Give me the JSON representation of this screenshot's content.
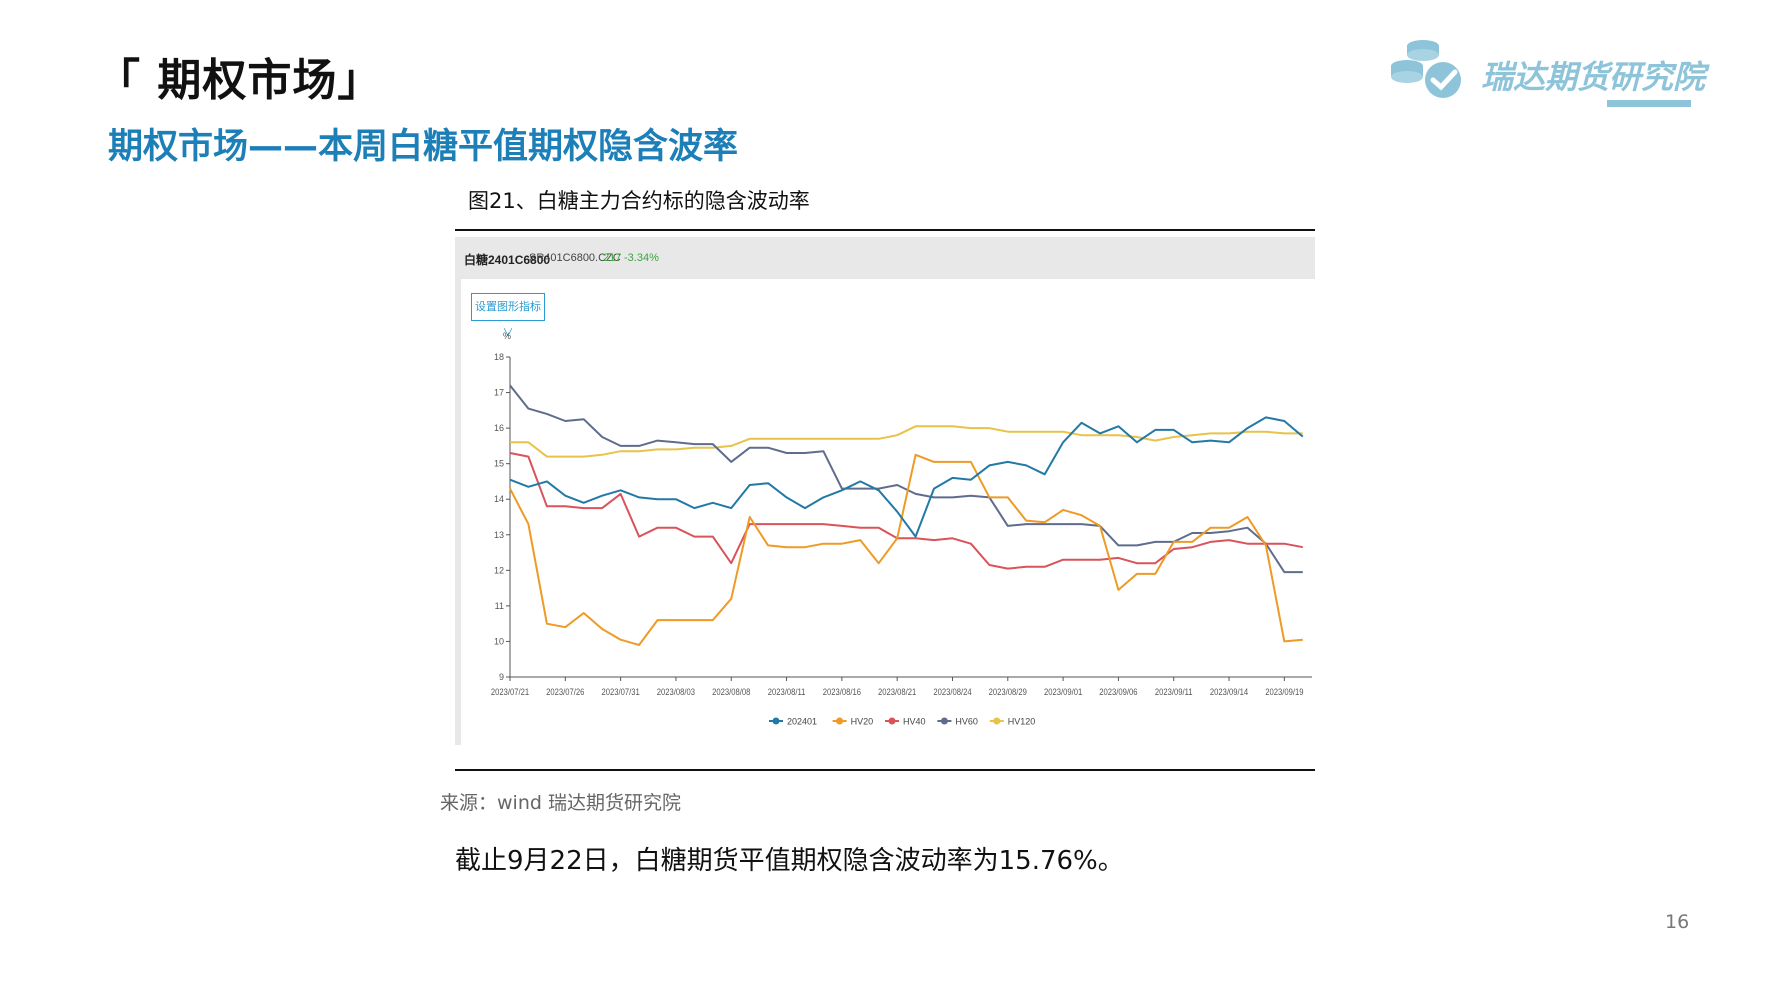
{
  "slide": {
    "section_title": "「 期权市场」",
    "subtitle": "期权市场——本周白糖平值期权隐含波率",
    "figure_caption": "图21、白糖主力合约标的隐含波动率",
    "source": "来源：wind   瑞达期货研究院",
    "summary": "截止9月22日，白糖期货平值期权隐含波动率为15.76%。",
    "page_number": "16",
    "logo_text": "瑞达期货研究院"
  },
  "chart_header": {
    "name": "白糖2401C6800",
    "code": "SR401C6800.CZC",
    "price": "217",
    "change": "-3.34%"
  },
  "controls": {
    "indicator_button": "设置图形指标 ∨"
  },
  "colors": {
    "accent": "#1d7fb8",
    "logo": "#8ec4d9",
    "s202401": "#2379a6",
    "sHV20": "#ee9a24",
    "sHV40": "#d9535a",
    "sHV60": "#5f6c8d",
    "sHV120": "#e8c24a"
  },
  "chart_data": {
    "type": "line",
    "ylabel": "%",
    "ylim": [
      9,
      18
    ],
    "yticks": [
      9,
      10,
      11,
      12,
      13,
      14,
      15,
      16,
      17,
      18
    ],
    "xlim": [
      0,
      43.5
    ],
    "xticks": [
      {
        "i": 0,
        "label": "2023/07/21"
      },
      {
        "i": 3,
        "label": "2023/07/26"
      },
      {
        "i": 6,
        "label": "2023/07/31"
      },
      {
        "i": 9,
        "label": "2023/08/03"
      },
      {
        "i": 12,
        "label": "2023/08/08"
      },
      {
        "i": 15,
        "label": "2023/08/11"
      },
      {
        "i": 18,
        "label": "2023/08/16"
      },
      {
        "i": 21,
        "label": "2023/08/21"
      },
      {
        "i": 24,
        "label": "2023/08/24"
      },
      {
        "i": 27,
        "label": "2023/08/29"
      },
      {
        "i": 30,
        "label": "2023/09/01"
      },
      {
        "i": 33,
        "label": "2023/09/06"
      },
      {
        "i": 36,
        "label": "2023/09/11"
      },
      {
        "i": 39,
        "label": "2023/09/14"
      },
      {
        "i": 42,
        "label": "2023/09/19"
      }
    ],
    "legend_position": "bottom",
    "series": [
      {
        "name": "202401",
        "color": "#2379a6",
        "values": [
          14.55,
          14.35,
          14.5,
          14.1,
          13.9,
          14.1,
          14.25,
          14.05,
          14.0,
          14.0,
          13.75,
          13.9,
          13.75,
          14.4,
          14.45,
          14.05,
          13.75,
          14.05,
          14.25,
          14.5,
          14.25,
          13.65,
          12.95,
          14.3,
          14.6,
          14.55,
          14.95,
          15.05,
          14.95,
          14.7,
          15.6,
          16.15,
          15.85,
          16.05,
          15.6,
          15.95,
          15.95,
          15.6,
          15.65,
          15.6,
          16.0,
          16.3,
          16.2,
          15.76
        ]
      },
      {
        "name": "HV20",
        "color": "#ee9a24",
        "values": [
          14.3,
          13.3,
          10.5,
          10.4,
          10.8,
          10.35,
          10.05,
          9.9,
          10.6,
          10.6,
          10.6,
          10.6,
          11.2,
          13.5,
          12.7,
          12.65,
          12.65,
          12.75,
          12.75,
          12.85,
          12.2,
          12.9,
          15.25,
          15.05,
          15.05,
          15.05,
          14.05,
          14.05,
          13.4,
          13.35,
          13.7,
          13.55,
          13.25,
          11.45,
          11.9,
          11.9,
          12.8,
          12.8,
          13.2,
          13.2,
          13.5,
          12.7,
          10.0,
          10.05
        ]
      },
      {
        "name": "HV40",
        "color": "#d9535a",
        "values": [
          15.3,
          15.2,
          13.8,
          13.8,
          13.75,
          13.75,
          14.15,
          12.95,
          13.2,
          13.2,
          12.95,
          12.95,
          12.2,
          13.3,
          13.3,
          13.3,
          13.3,
          13.3,
          13.25,
          13.2,
          13.2,
          12.9,
          12.9,
          12.85,
          12.9,
          12.75,
          12.15,
          12.05,
          12.1,
          12.1,
          12.3,
          12.3,
          12.3,
          12.35,
          12.2,
          12.2,
          12.6,
          12.65,
          12.8,
          12.85,
          12.75,
          12.75,
          12.75,
          12.65
        ]
      },
      {
        "name": "HV60",
        "color": "#5f6c8d",
        "values": [
          17.2,
          16.55,
          16.4,
          16.2,
          16.25,
          15.75,
          15.5,
          15.5,
          15.65,
          15.6,
          15.55,
          15.55,
          15.05,
          15.45,
          15.45,
          15.3,
          15.3,
          15.35,
          14.3,
          14.3,
          14.3,
          14.4,
          14.15,
          14.05,
          14.05,
          14.1,
          14.05,
          13.25,
          13.3,
          13.3,
          13.3,
          13.3,
          13.25,
          12.7,
          12.7,
          12.8,
          12.8,
          13.05,
          13.05,
          13.1,
          13.2,
          12.75,
          11.95,
          11.95
        ]
      },
      {
        "name": "HV120",
        "color": "#e8c24a",
        "values": [
          15.6,
          15.6,
          15.2,
          15.2,
          15.2,
          15.25,
          15.35,
          15.35,
          15.4,
          15.4,
          15.45,
          15.45,
          15.5,
          15.7,
          15.7,
          15.7,
          15.7,
          15.7,
          15.7,
          15.7,
          15.7,
          15.8,
          16.05,
          16.05,
          16.05,
          16.0,
          16.0,
          15.9,
          15.9,
          15.9,
          15.9,
          15.8,
          15.8,
          15.8,
          15.75,
          15.65,
          15.75,
          15.8,
          15.85,
          15.85,
          15.9,
          15.9,
          15.85,
          15.85
        ]
      }
    ]
  }
}
